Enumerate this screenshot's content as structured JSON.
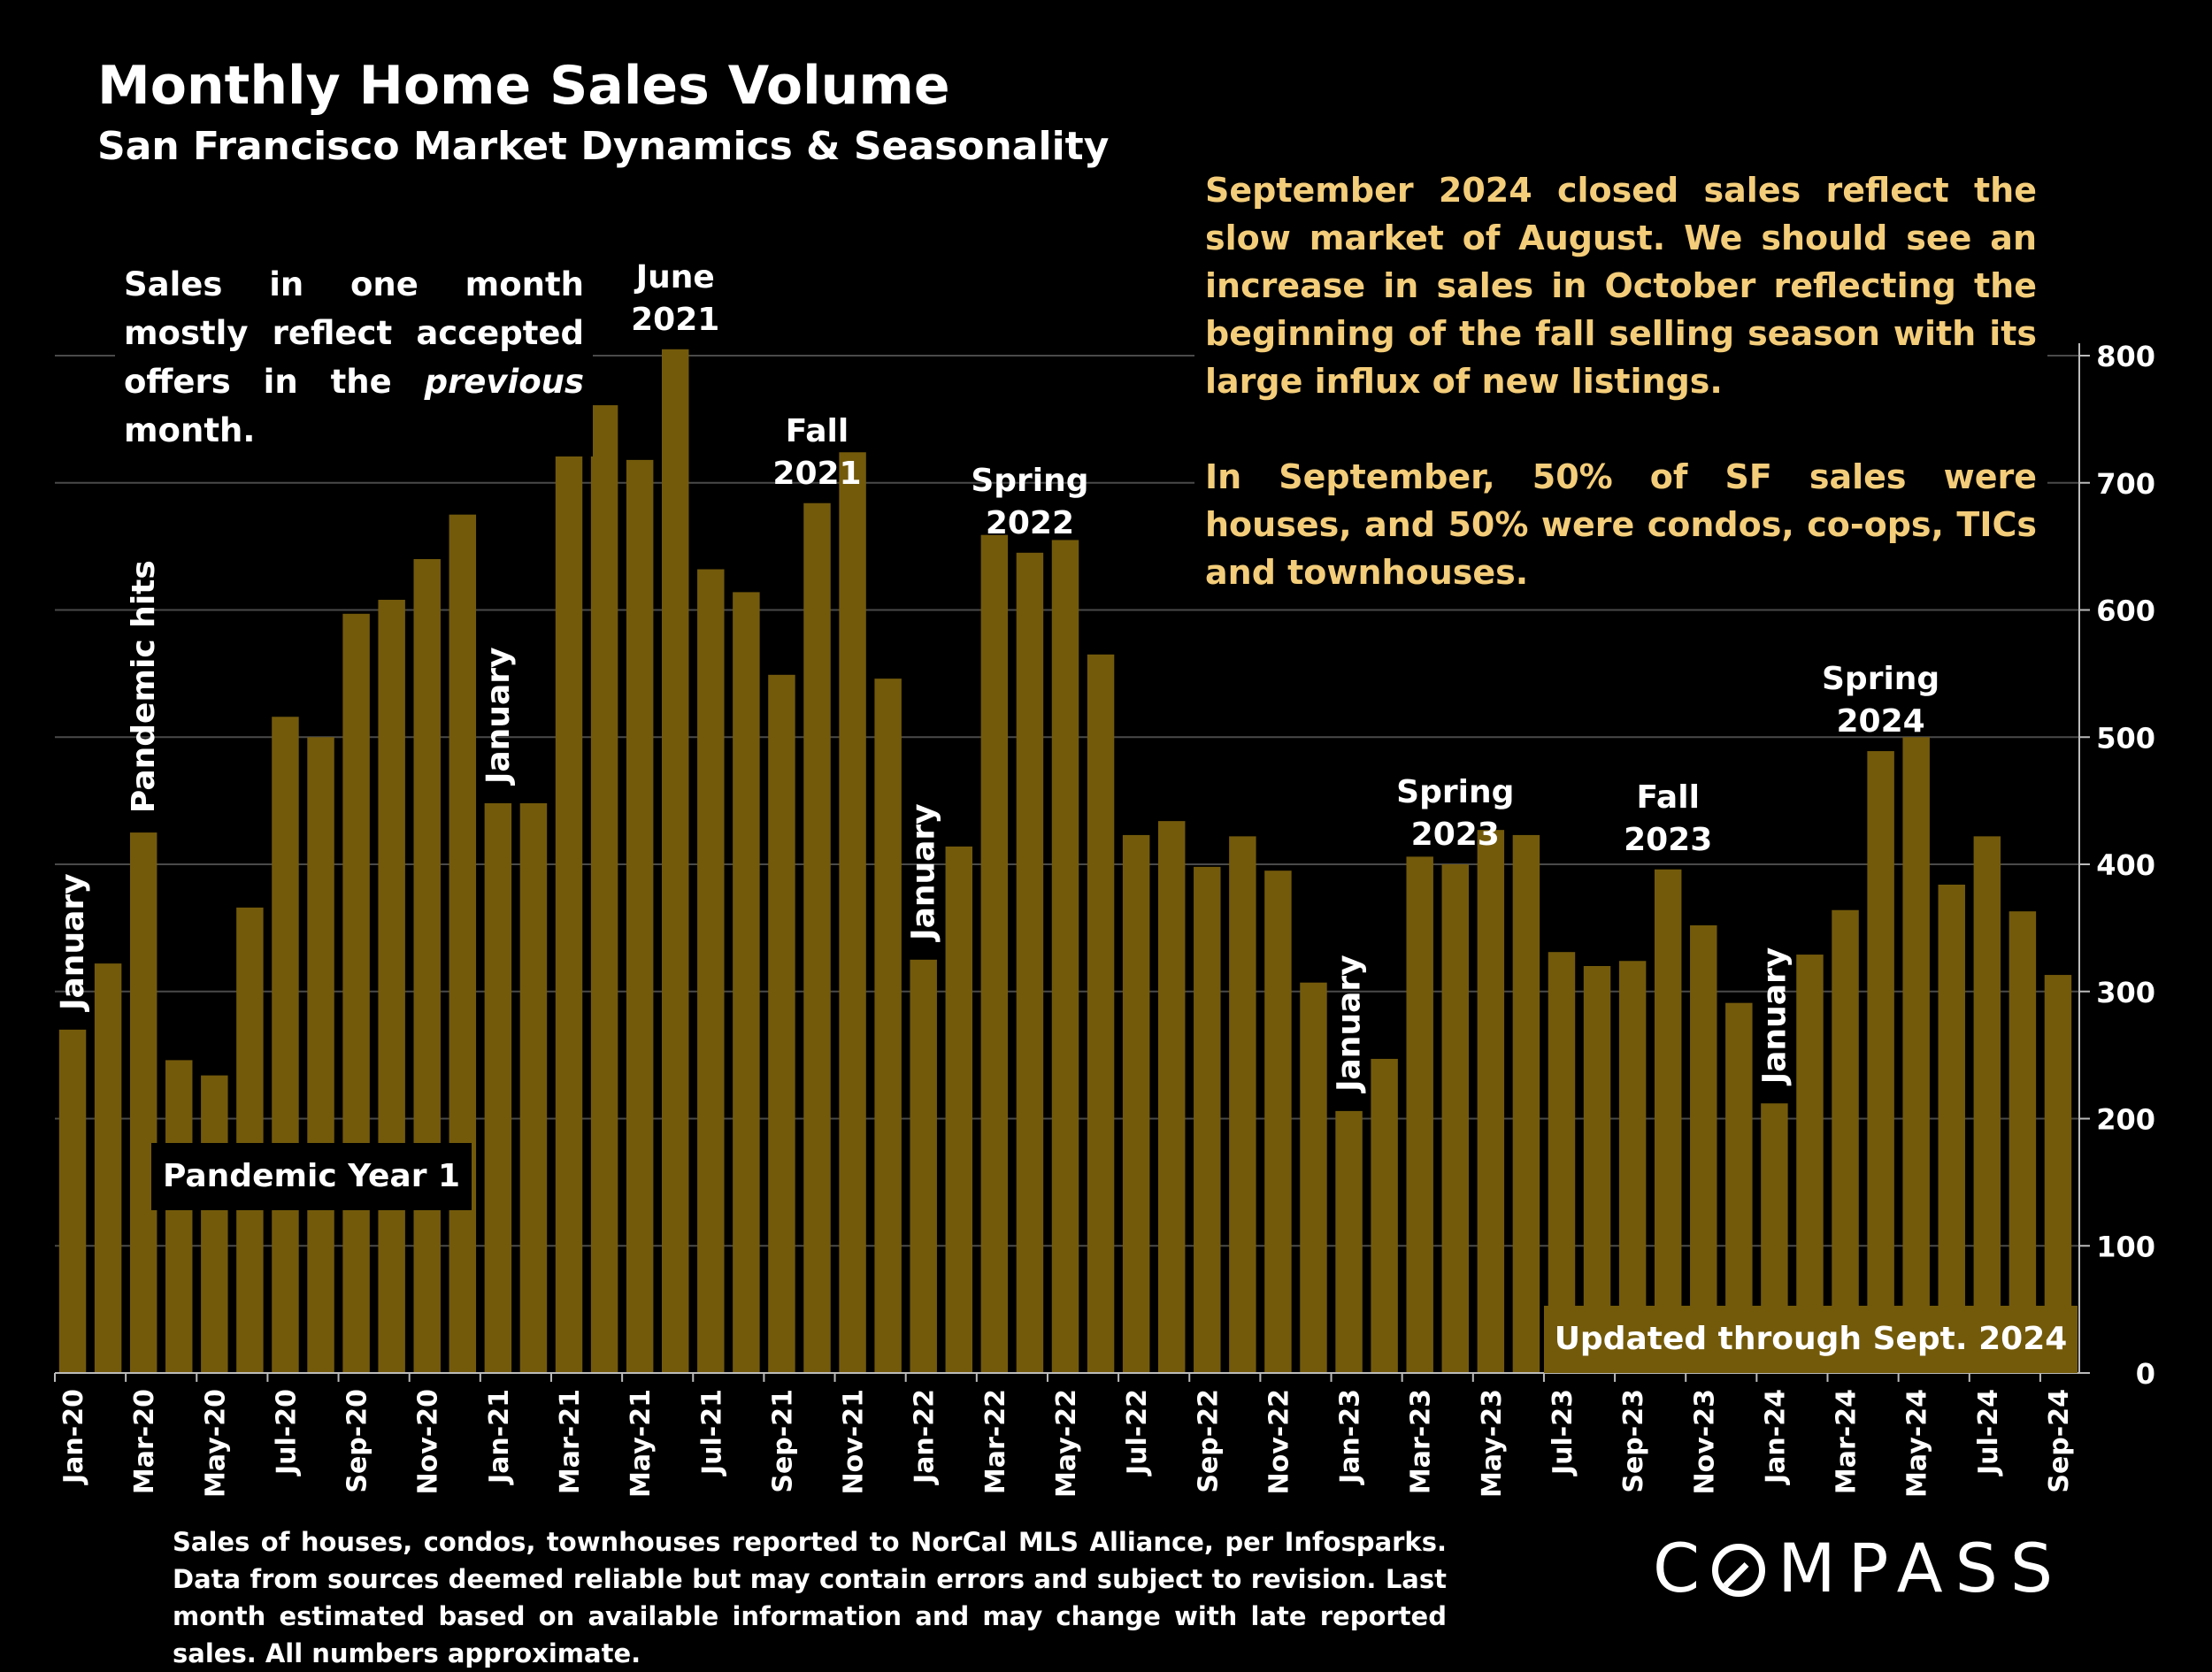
{
  "title": "Monthly Home Sales Volume",
  "subtitle": "San Francisco Market Dynamics & Seasonality",
  "note": {
    "line_pre": "Sales in one month mostly reflect accepted offers in the ",
    "italic": "previous",
    "line_post": " month."
  },
  "commentary": {
    "p1": "September 2024 closed sales reflect the slow market of August. We should see an increase in sales in October reflecting the beginning of the fall selling season with its large influx of new listings.",
    "p2": "In September, 50% of SF sales were houses, and 50% were condos, co-ops, TICs and townhouses."
  },
  "footnote": "Sales of houses, condos, townhouses reported to NorCal MLS Alliance, per Infosparks. Data from sources deemed reliable but may contain errors and subject to revision. Last month estimated based on available information and may change with late reported sales. All numbers approximate.",
  "logo": {
    "pre": "C",
    "post": "MPASS"
  },
  "colors": {
    "bar": "#735a0b",
    "grid": "#4a4a4a",
    "background": "#000000",
    "commentary": "#f4cd7a"
  },
  "chart_data": {
    "type": "bar",
    "title": "Monthly Home Sales Volume",
    "xlabel": "",
    "ylabel": "",
    "ylim": [
      0,
      800
    ],
    "yticks": [
      0,
      100,
      200,
      300,
      400,
      500,
      600,
      700,
      800
    ],
    "y_axis_side": "right",
    "grid": true,
    "categories": [
      "Jan-20",
      "Feb-20",
      "Mar-20",
      "Apr-20",
      "May-20",
      "Jun-20",
      "Jul-20",
      "Aug-20",
      "Sep-20",
      "Oct-20",
      "Nov-20",
      "Dec-20",
      "Jan-21",
      "Feb-21",
      "Mar-21",
      "Apr-21",
      "May-21",
      "Jun-21",
      "Jul-21",
      "Aug-21",
      "Sep-21",
      "Oct-21",
      "Nov-21",
      "Dec-21",
      "Jan-22",
      "Feb-22",
      "Mar-22",
      "Apr-22",
      "May-22",
      "Jun-22",
      "Jul-22",
      "Aug-22",
      "Sep-22",
      "Oct-22",
      "Nov-22",
      "Dec-22",
      "Jan-23",
      "Feb-23",
      "Mar-23",
      "Apr-23",
      "May-23",
      "Jun-23",
      "Jul-23",
      "Aug-23",
      "Sep-23",
      "Oct-23",
      "Nov-23",
      "Dec-23",
      "Jan-24",
      "Feb-24",
      "Mar-24",
      "Apr-24",
      "May-24",
      "Jun-24",
      "Jul-24",
      "Aug-24",
      "Sep-24"
    ],
    "tick_labels": [
      "Jan-20",
      "Mar-20",
      "May-20",
      "Jul-20",
      "Sep-20",
      "Nov-20",
      "Jan-21",
      "Mar-21",
      "May-21",
      "Jul-21",
      "Sep-21",
      "Nov-21",
      "Jan-22",
      "Mar-22",
      "May-22",
      "Jul-22",
      "Sep-22",
      "Nov-22",
      "Jan-23",
      "Mar-23",
      "May-23",
      "Jul-23",
      "Sep-23",
      "Nov-23",
      "Jan-24",
      "Mar-24",
      "May-24",
      "Jul-24",
      "Sep-24"
    ],
    "values": [
      270,
      322,
      425,
      246,
      234,
      366,
      516,
      500,
      597,
      608,
      640,
      675,
      448,
      448,
      739,
      761,
      718,
      805,
      632,
      614,
      549,
      684,
      724,
      546,
      325,
      414,
      659,
      645,
      655,
      565,
      423,
      434,
      398,
      422,
      395,
      307,
      206,
      247,
      406,
      400,
      427,
      423,
      331,
      320,
      324,
      396,
      352,
      291,
      212,
      329,
      364,
      489,
      500,
      384,
      422,
      363,
      313
    ],
    "annotations": [
      {
        "text": "January",
        "month": "Jan-20",
        "vertical": true
      },
      {
        "text": "Pandemic hits",
        "month": "Mar-20",
        "vertical": true
      },
      {
        "text": "January",
        "month": "Jan-21",
        "vertical": true
      },
      {
        "text": "June 2021",
        "month": "Jun-21",
        "vertical": false
      },
      {
        "text": "Fall 2021",
        "month": "Oct-21",
        "vertical": false
      },
      {
        "text": "Spring 2022",
        "month": "Apr-22",
        "vertical": false
      },
      {
        "text": "January",
        "month": "Jan-22",
        "vertical": true
      },
      {
        "text": "January",
        "month": "Jan-23",
        "vertical": true
      },
      {
        "text": "Spring 2023",
        "month": "Apr-23",
        "vertical": false
      },
      {
        "text": "Fall 2023",
        "month": "Oct-23",
        "vertical": false
      },
      {
        "text": "January",
        "month": "Jan-24",
        "vertical": true
      },
      {
        "text": "Spring 2024",
        "month": "Apr-24",
        "vertical": false
      }
    ],
    "pandemic_label": "Pandemic Year 1",
    "updated_label": "Updated through Sept. 2024"
  }
}
